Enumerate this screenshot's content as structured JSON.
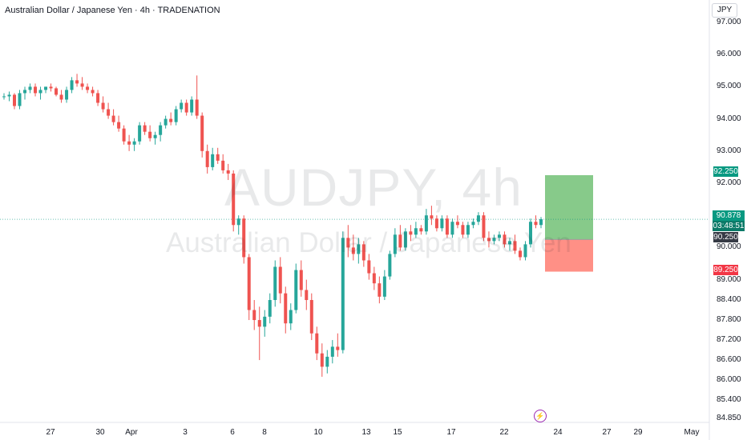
{
  "header": {
    "title": "Australian Dollar / Japanese Yen · 4h · TRADENATION"
  },
  "watermark": {
    "symbol": "AUDJPY, 4h",
    "description": "Australian Dollar / Japanese Yen"
  },
  "price_axis": {
    "currency": "JPY",
    "ticks": [
      "97.000",
      "96.000",
      "95.000",
      "94.000",
      "93.000",
      "92.000",
      "91.000",
      "90.000",
      "89.000",
      "88.400",
      "87.800",
      "87.200",
      "86.600",
      "86.000",
      "85.400",
      "84.850"
    ]
  },
  "time_axis": {
    "ticks": [
      "27",
      "30",
      "Apr",
      "3",
      "6",
      "8",
      "10",
      "13",
      "15",
      "17",
      "22",
      "24",
      "27",
      "29",
      "May"
    ]
  },
  "price_tags": {
    "take_profit": "92.250",
    "current_price": "90.878",
    "countdown": "03:48:51",
    "entry": "90.250",
    "stop_loss": "89.250"
  },
  "colors": {
    "up": "#26a69a",
    "down": "#ef5350",
    "profit_zone": "#81c784",
    "loss_zone": "#ff8a80"
  },
  "icons": {
    "events": "lightning-icon"
  },
  "chart_data": {
    "type": "candlestick",
    "title": "Australian Dollar / Japanese Yen · 4h · TRADENATION",
    "ylim": [
      84.85,
      97.4
    ],
    "grid": false,
    "ohlc": [
      [
        94.7,
        94.8,
        94.6,
        94.7
      ],
      [
        94.7,
        94.85,
        94.55,
        94.75
      ],
      [
        94.75,
        94.8,
        94.3,
        94.4
      ],
      [
        94.4,
        94.9,
        94.3,
        94.8
      ],
      [
        94.8,
        95.0,
        94.6,
        94.9
      ],
      [
        94.9,
        95.1,
        94.8,
        95.0
      ],
      [
        95.0,
        95.1,
        94.7,
        94.8
      ],
      [
        94.8,
        95.0,
        94.6,
        94.9
      ],
      [
        94.9,
        95.0,
        94.8,
        95.0
      ],
      [
        95.0,
        95.1,
        94.85,
        94.95
      ],
      [
        94.95,
        95.0,
        94.7,
        94.75
      ],
      [
        94.75,
        94.9,
        94.5,
        94.6
      ],
      [
        94.6,
        95.0,
        94.5,
        94.9
      ],
      [
        94.9,
        95.3,
        94.8,
        95.2
      ],
      [
        95.2,
        95.4,
        95.0,
        95.1
      ],
      [
        95.1,
        95.3,
        94.9,
        95.0
      ],
      [
        95.0,
        95.1,
        94.8,
        94.9
      ],
      [
        94.9,
        95.0,
        94.7,
        94.8
      ],
      [
        94.8,
        94.9,
        94.4,
        94.5
      ],
      [
        94.5,
        94.7,
        94.2,
        94.3
      ],
      [
        94.3,
        94.5,
        94.0,
        94.1
      ],
      [
        94.1,
        94.3,
        93.8,
        93.9
      ],
      [
        93.9,
        94.1,
        93.6,
        93.7
      ],
      [
        93.7,
        93.8,
        93.2,
        93.3
      ],
      [
        93.3,
        93.5,
        93.0,
        93.2
      ],
      [
        93.2,
        93.4,
        93.0,
        93.3
      ],
      [
        93.3,
        93.9,
        93.2,
        93.8
      ],
      [
        93.8,
        93.9,
        93.5,
        93.6
      ],
      [
        93.6,
        93.8,
        93.3,
        93.4
      ],
      [
        93.4,
        93.6,
        93.2,
        93.5
      ],
      [
        93.5,
        93.9,
        93.3,
        93.8
      ],
      [
        93.8,
        94.1,
        93.7,
        94.0
      ],
      [
        94.0,
        94.2,
        93.8,
        93.9
      ],
      [
        93.9,
        94.4,
        93.8,
        94.3
      ],
      [
        94.3,
        94.6,
        94.2,
        94.5
      ],
      [
        94.5,
        94.6,
        94.1,
        94.2
      ],
      [
        94.2,
        94.7,
        94.1,
        94.6
      ],
      [
        94.6,
        95.35,
        94.0,
        94.1
      ],
      [
        94.1,
        94.2,
        92.8,
        93.0
      ],
      [
        93.0,
        93.2,
        92.3,
        92.5
      ],
      [
        92.5,
        93.1,
        92.4,
        92.9
      ],
      [
        92.9,
        93.1,
        92.6,
        92.7
      ],
      [
        92.7,
        92.9,
        92.3,
        92.4
      ],
      [
        92.4,
        92.6,
        92.1,
        92.3
      ],
      [
        92.3,
        92.4,
        90.5,
        90.7
      ],
      [
        90.7,
        91.0,
        90.4,
        90.9
      ],
      [
        90.9,
        91.0,
        89.5,
        89.7
      ],
      [
        89.7,
        89.8,
        87.8,
        88.1
      ],
      [
        88.1,
        88.4,
        87.5,
        87.8
      ],
      [
        87.8,
        88.2,
        86.6,
        87.6
      ],
      [
        87.6,
        88.1,
        87.3,
        87.9
      ],
      [
        87.9,
        88.6,
        87.7,
        88.4
      ],
      [
        88.4,
        89.6,
        88.2,
        89.4
      ],
      [
        89.4,
        89.7,
        88.3,
        88.6
      ],
      [
        88.6,
        88.8,
        87.4,
        87.7
      ],
      [
        87.7,
        88.3,
        87.5,
        88.1
      ],
      [
        88.1,
        89.5,
        88.0,
        89.3
      ],
      [
        89.3,
        89.6,
        88.5,
        88.7
      ],
      [
        88.7,
        89.0,
        88.1,
        88.4
      ],
      [
        88.4,
        88.6,
        87.2,
        87.4
      ],
      [
        87.4,
        87.6,
        86.6,
        86.8
      ],
      [
        86.8,
        87.1,
        86.1,
        86.4
      ],
      [
        86.4,
        86.9,
        86.2,
        86.7
      ],
      [
        86.7,
        87.2,
        86.5,
        87.0
      ],
      [
        87.0,
        87.4,
        86.7,
        86.9
      ],
      [
        86.9,
        90.5,
        86.8,
        90.3
      ],
      [
        90.3,
        90.7,
        89.7,
        90.0
      ],
      [
        90.0,
        90.4,
        89.6,
        89.8
      ],
      [
        89.8,
        90.3,
        89.5,
        90.1
      ],
      [
        90.1,
        90.2,
        89.4,
        89.6
      ],
      [
        89.6,
        89.8,
        89.0,
        89.2
      ],
      [
        89.2,
        89.4,
        88.7,
        88.9
      ],
      [
        88.9,
        89.1,
        88.3,
        88.5
      ],
      [
        88.5,
        89.3,
        88.4,
        89.1
      ],
      [
        89.1,
        89.9,
        89.0,
        89.8
      ],
      [
        89.8,
        90.6,
        89.7,
        90.4
      ],
      [
        90.4,
        90.7,
        89.9,
        90.0
      ],
      [
        90.0,
        90.6,
        89.9,
        90.5
      ],
      [
        90.5,
        90.7,
        90.2,
        90.4
      ],
      [
        90.4,
        90.8,
        90.3,
        90.6
      ],
      [
        90.6,
        90.7,
        90.4,
        90.5
      ],
      [
        90.5,
        91.2,
        90.4,
        91.0
      ],
      [
        91.0,
        91.3,
        90.7,
        90.9
      ],
      [
        90.9,
        91.0,
        90.5,
        90.6
      ],
      [
        90.6,
        91.0,
        90.5,
        90.9
      ],
      [
        90.9,
        91.0,
        90.3,
        90.4
      ],
      [
        90.4,
        90.9,
        90.3,
        90.8
      ],
      [
        90.8,
        91.0,
        90.6,
        90.7
      ],
      [
        90.7,
        90.8,
        90.3,
        90.4
      ],
      [
        90.4,
        90.8,
        90.3,
        90.7
      ],
      [
        90.7,
        90.9,
        90.6,
        90.8
      ],
      [
        90.8,
        91.1,
        90.7,
        91.0
      ],
      [
        91.0,
        91.1,
        90.2,
        90.3
      ],
      [
        90.3,
        90.5,
        90.0,
        90.2
      ],
      [
        90.2,
        90.4,
        90.1,
        90.3
      ],
      [
        90.3,
        90.5,
        90.2,
        90.4
      ],
      [
        90.4,
        90.5,
        90.0,
        90.1
      ],
      [
        90.1,
        90.3,
        89.9,
        90.2
      ],
      [
        90.2,
        90.4,
        89.8,
        89.9
      ],
      [
        89.9,
        90.0,
        89.6,
        89.7
      ],
      [
        89.7,
        90.2,
        89.6,
        90.1
      ],
      [
        90.1,
        90.9,
        90.0,
        90.8
      ],
      [
        90.8,
        91.0,
        90.6,
        90.7
      ],
      [
        90.7,
        90.95,
        90.6,
        90.88
      ]
    ],
    "position": {
      "take_profit": 92.25,
      "entry": 90.25,
      "stop_loss": 89.25,
      "current": 90.878
    }
  }
}
